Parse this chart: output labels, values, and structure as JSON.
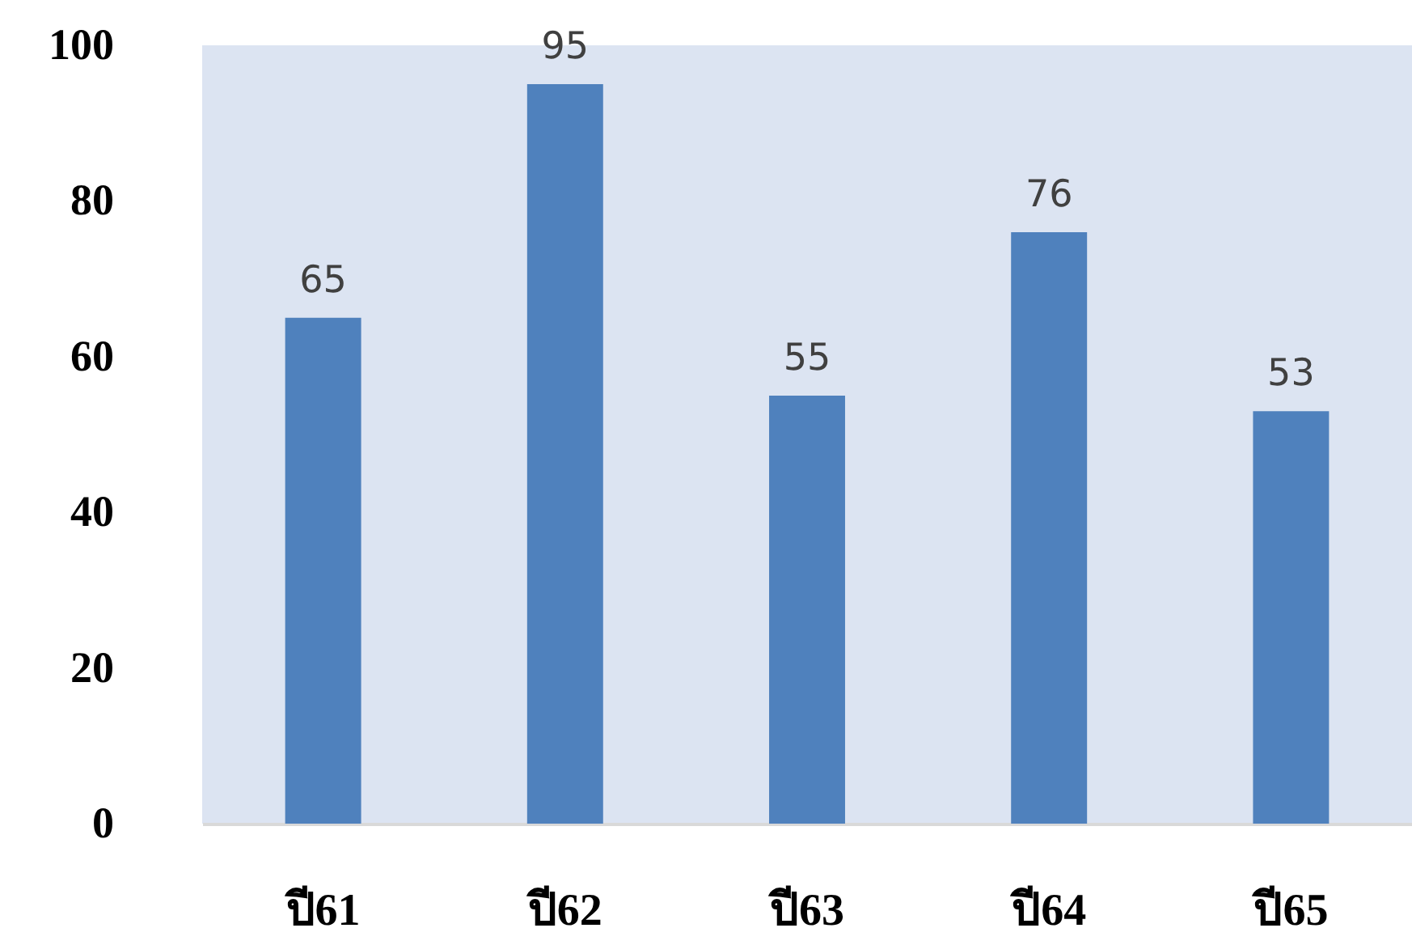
{
  "chart_data": {
    "type": "bar",
    "categories": [
      "ปี61",
      "ปี62",
      "ปี63",
      "ปี64",
      "ปี65"
    ],
    "values": [
      65,
      95,
      55,
      76,
      53
    ],
    "color": "#4f81bd",
    "ylim": [
      0,
      100
    ],
    "yticks": [
      0,
      20,
      40,
      60,
      80,
      100
    ],
    "grid": false,
    "data_labels": true
  }
}
